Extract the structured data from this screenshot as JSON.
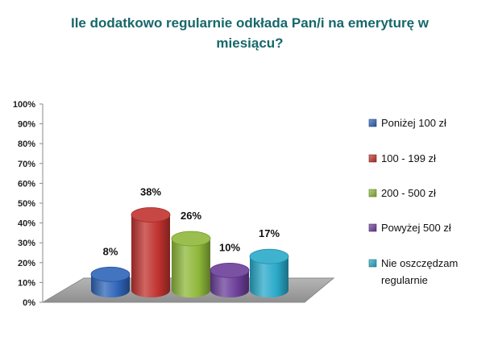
{
  "chart_data": {
    "type": "bar",
    "title": "Ile dodatkowo regularnie odkłada Pan/i na emeryturę w miesiącu?",
    "categories": [
      "Poniżej 100 zł",
      "100 - 199 zł",
      "200 - 500 zł",
      "Powyżej 500 zł",
      "Nie oszczędzam regularnie"
    ],
    "values": [
      8,
      38,
      26,
      10,
      17
    ],
    "value_labels": [
      "8%",
      "38%",
      "26%",
      "10%",
      "17%"
    ],
    "colors": [
      "#2e64b8",
      "#c0322e",
      "#8fb83a",
      "#6b3e99",
      "#29a9c9"
    ],
    "legend": [
      {
        "lines": [
          "Poniżej 100 zł"
        ]
      },
      {
        "lines": [
          "100 - 199 zł"
        ]
      },
      {
        "lines": [
          "200 - 500 zł"
        ]
      },
      {
        "lines": [
          "Powyżej 500 zł"
        ]
      },
      {
        "lines": [
          "Nie oszczędzam",
          "regularnie"
        ]
      }
    ],
    "y_ticks": [
      "0%",
      "10%",
      "20%",
      "30%",
      "40%",
      "50%",
      "60%",
      "70%",
      "80%",
      "90%",
      "100%"
    ],
    "ylim": [
      0,
      100
    ],
    "style": "3d-cylinder",
    "grid": false,
    "legend_position": "right"
  }
}
